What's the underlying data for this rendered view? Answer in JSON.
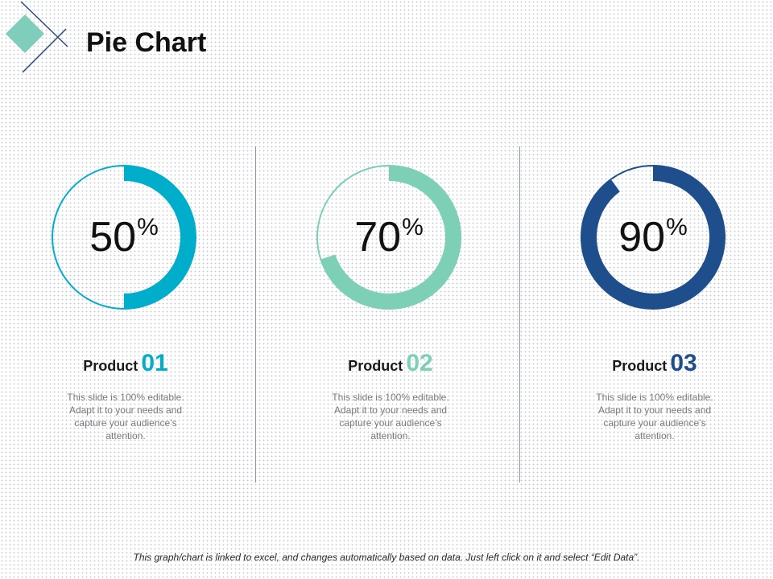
{
  "title": "Pie Chart",
  "colors": {
    "p1": "#00aecb",
    "p2": "#7dcfb6",
    "p3": "#1f4e8c"
  },
  "chart_data": [
    {
      "type": "pie",
      "value_percent": 50,
      "value_label": "50",
      "unit": "%",
      "product_label": "Product",
      "product_number": "01",
      "description": "This slide is 100% editable. Adapt it to your needs and capture your audience’s attention.",
      "color": "#00aecb"
    },
    {
      "type": "pie",
      "value_percent": 70,
      "value_label": "70",
      "unit": "%",
      "product_label": "Product",
      "product_number": "02",
      "description": "This slide is 100% editable. Adapt it to your needs and capture your audience’s attention.",
      "color": "#7dcfb6"
    },
    {
      "type": "pie",
      "value_percent": 90,
      "value_label": "90",
      "unit": "%",
      "product_label": "Product",
      "product_number": "03",
      "description": "This slide is 100% editable. Adapt it to your needs and capture your audience’s attention.",
      "color": "#1f4e8c"
    }
  ],
  "footer": "This graph/chart is linked to excel, and changes automatically based on data. Just left click on it and select “Edit Data”."
}
